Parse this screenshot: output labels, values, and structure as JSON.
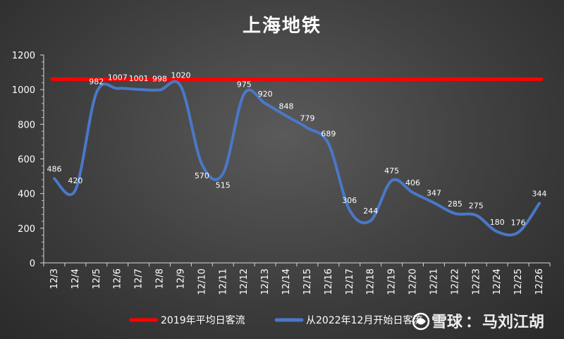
{
  "chart_data": {
    "type": "line",
    "title": "上海地铁",
    "categories": [
      "12/3",
      "12/4",
      "12/5",
      "12/6",
      "12/7",
      "12/8",
      "12/9",
      "12/10",
      "12/11",
      "12/12",
      "12/13",
      "12/14",
      "12/15",
      "12/16",
      "12/17",
      "12/18",
      "12/19",
      "12/20",
      "12/21",
      "12/22",
      "12/23",
      "12/24",
      "12/25",
      "12/26"
    ],
    "ylim": [
      0,
      1200
    ],
    "yticks": [
      0,
      200,
      400,
      600,
      800,
      1000,
      1200
    ],
    "series": [
      {
        "name": "从2022年12月开始日客流",
        "values": [
          486,
          420,
          982,
          1007,
          1001,
          998,
          1020,
          570,
          515,
          975,
          920,
          848,
          779,
          689,
          306,
          244,
          475,
          406,
          347,
          285,
          275,
          180,
          176,
          344
        ],
        "color": "#4a78c8"
      },
      {
        "name": "2019年平均日客流",
        "constant": 1060,
        "color": "#ff0000"
      }
    ],
    "legend_position": "bottom",
    "grid": false
  },
  "watermark": {
    "brand": "雪球",
    "separator": "：",
    "author": "马刘江胡"
  }
}
